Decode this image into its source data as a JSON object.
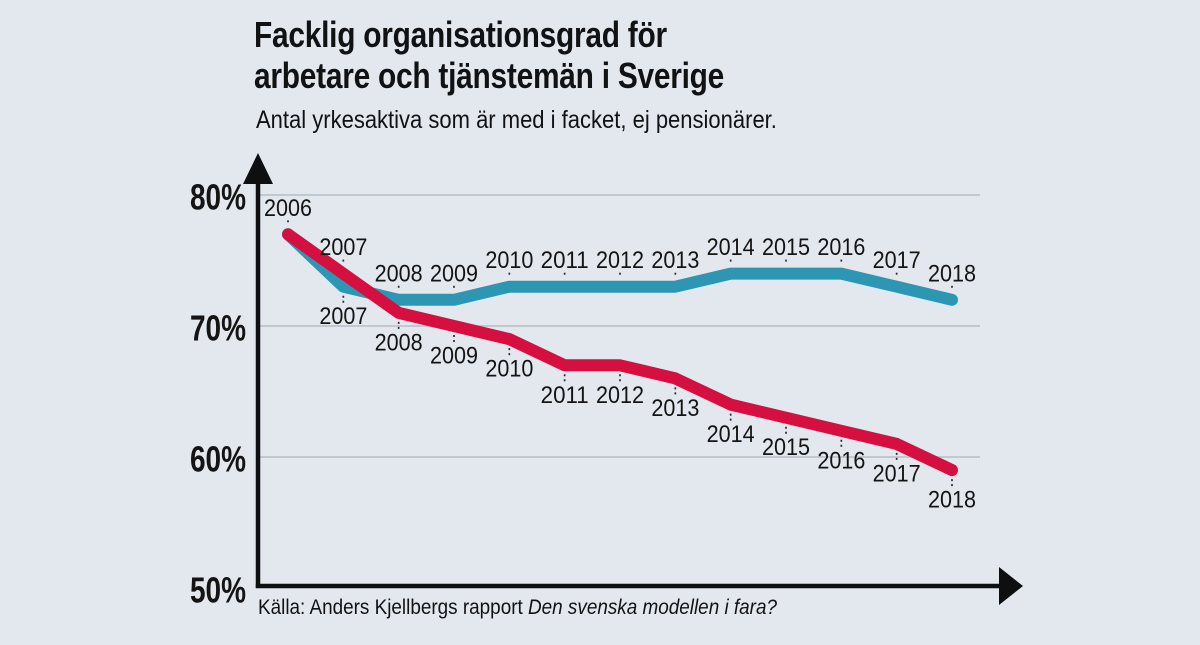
{
  "page": {
    "background": "#e2e8ee",
    "text_color": "#111214"
  },
  "header": {
    "title_lines": [
      "Facklig organisationsgrad för",
      "arbetare och tjänstemän i Sverige"
    ],
    "subtitle": "Antal yrkesaktiva som är med i facket, ej pensionärer."
  },
  "footer": {
    "source_prefix": "Källa: Anders Kjellbergs rapport ",
    "source_work_italic": "Den svenska modellen i fara?"
  },
  "chart_data": {
    "type": "line",
    "title": "Facklig organisationsgrad för arbetare och tjänstemän i Sverige",
    "subtitle": "Antal yrkesaktiva som är med i facket, ej pensionärer.",
    "x": [
      2006,
      2007,
      2008,
      2009,
      2010,
      2011,
      2012,
      2013,
      2014,
      2015,
      2016,
      2017,
      2018
    ],
    "series": [
      {
        "name": "tjänstemän",
        "color": "#2D96B3",
        "values": [
          77,
          73,
          72,
          72,
          73,
          73,
          73,
          73,
          74,
          74,
          74,
          73,
          72
        ]
      },
      {
        "name": "arbetare",
        "color": "#D50F3F",
        "values": [
          77,
          74,
          71,
          70,
          69,
          67,
          67,
          66,
          64,
          63,
          62,
          61,
          59
        ]
      }
    ],
    "unit": "%",
    "yticks": [
      {
        "value": 80,
        "label": "80%"
      },
      {
        "value": 70,
        "label": "70%"
      },
      {
        "value": 60,
        "label": "60%"
      },
      {
        "value": 50,
        "label": "50%"
      }
    ],
    "ylim": [
      50,
      82
    ],
    "grid": true,
    "legend": "none",
    "annotation_style": "year labels above upper line and below lower line, linked with dotted connectors",
    "gridline_color": "#b7bdc5",
    "axis_color": "#0e0f10",
    "label_color": "#141414",
    "source": "Källa: Anders Kjellbergs rapport Den svenska modellen i fara?"
  }
}
